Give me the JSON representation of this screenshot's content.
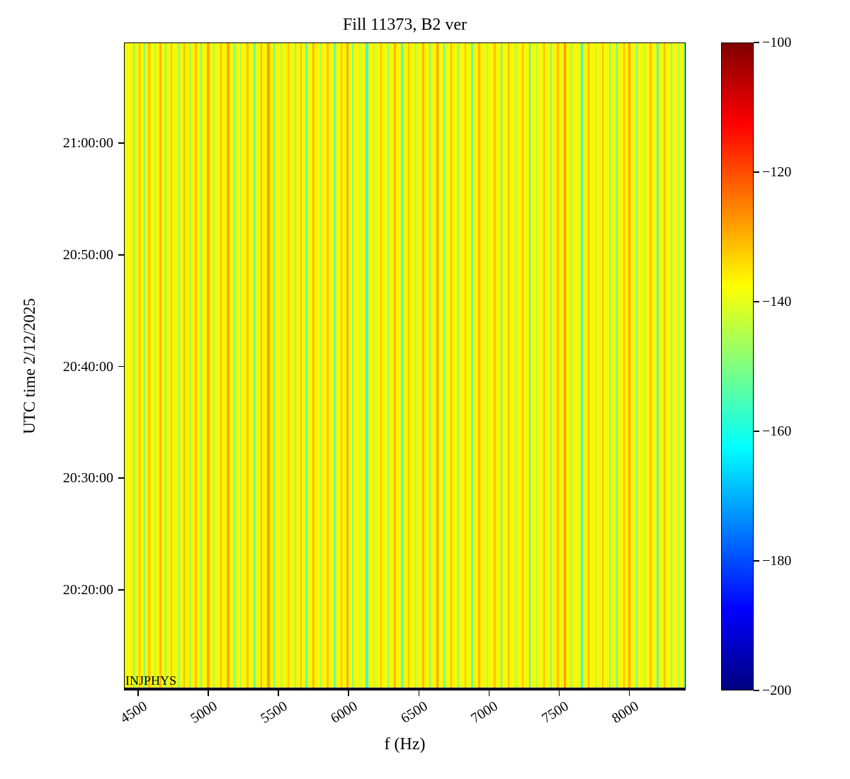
{
  "figure": {
    "title": "Fill 11373, B2 ver",
    "xlabel": "f (Hz)",
    "ylabel": "UTC time 2/12/2025",
    "annotation": "INJPHYS"
  },
  "chart_data": {
    "type": "heatmap",
    "title": "Fill 11373, B2 ver",
    "xlabel": "f (Hz)",
    "ylabel": "UTC time 2/12/2025",
    "colormap": "jet",
    "color_scale_db": [
      -200,
      -100
    ],
    "colorbar_ticks": [
      -100,
      -120,
      -140,
      -160,
      -180,
      -200
    ],
    "colorbar_tick_labels": [
      "−100",
      "−120",
      "−140",
      "−160",
      "−180",
      "−200"
    ],
    "x_range_hz": [
      4400,
      8400
    ],
    "x_ticks": [
      4500,
      5000,
      5500,
      6000,
      6500,
      7000,
      7500,
      8000
    ],
    "x_tick_labels": [
      "4500",
      "5000",
      "5500",
      "6000",
      "6500",
      "7000",
      "7500",
      "8000"
    ],
    "y_time_start": "20:11:00",
    "y_time_end": "21:09:00",
    "y_ticks": [
      "20:20:00",
      "20:30:00",
      "20:40:00",
      "20:50:00",
      "21:00:00"
    ],
    "time_invariant": true,
    "baseline_db": -137.5,
    "background_texture": {
      "amplitude_db": 2.0,
      "phase_per_hz": 0.9
    },
    "bottom_edge_db": -200,
    "stripe_format": [
      "f_hz",
      "db",
      "width_hz"
    ],
    "stripes": [
      [
        4470,
        -152,
        10
      ],
      [
        4510,
        -131,
        10
      ],
      [
        4545,
        -150,
        12
      ],
      [
        4580,
        -131,
        14
      ],
      [
        4620,
        -146,
        10
      ],
      [
        4660,
        -130,
        12
      ],
      [
        4700,
        -152,
        10
      ],
      [
        4740,
        -131,
        10
      ],
      [
        4790,
        -148,
        14
      ],
      [
        4830,
        -130,
        12
      ],
      [
        4870,
        -150,
        10
      ],
      [
        4910,
        -131,
        16
      ],
      [
        4950,
        -153,
        12
      ],
      [
        5000,
        -129,
        16
      ],
      [
        5040,
        -148,
        10
      ],
      [
        5090,
        -131,
        12
      ],
      [
        5140,
        -129,
        20
      ],
      [
        5185,
        -152,
        10
      ],
      [
        5230,
        -146,
        10
      ],
      [
        5280,
        -131,
        12
      ],
      [
        5330,
        -154,
        12
      ],
      [
        5380,
        -130,
        12
      ],
      [
        5430,
        -128,
        18
      ],
      [
        5470,
        -153,
        10
      ],
      [
        5520,
        -146,
        10
      ],
      [
        5570,
        -131,
        12
      ],
      [
        5620,
        -150,
        10
      ],
      [
        5660,
        -131,
        10
      ],
      [
        5700,
        -154,
        14
      ],
      [
        5750,
        -130,
        12
      ],
      [
        5800,
        -147,
        10
      ],
      [
        5850,
        -131,
        12
      ],
      [
        5900,
        -155,
        12
      ],
      [
        5950,
        -131,
        10
      ],
      [
        5990,
        -129,
        14
      ],
      [
        6030,
        -152,
        12
      ],
      [
        6080,
        -146,
        10
      ],
      [
        6130,
        -157,
        16
      ],
      [
        6180,
        -145,
        10
      ],
      [
        6230,
        -131,
        12
      ],
      [
        6280,
        -150,
        10
      ],
      [
        6330,
        -130,
        12
      ],
      [
        6380,
        -154,
        12
      ],
      [
        6430,
        -131,
        10
      ],
      [
        6480,
        -148,
        10
      ],
      [
        6530,
        -130,
        14
      ],
      [
        6580,
        -152,
        10
      ],
      [
        6630,
        -128,
        16
      ],
      [
        6680,
        -155,
        12
      ],
      [
        6730,
        -130,
        12
      ],
      [
        6780,
        -148,
        10
      ],
      [
        6830,
        -131,
        10
      ],
      [
        6880,
        -153,
        12
      ],
      [
        6930,
        -130,
        14
      ],
      [
        6990,
        -146,
        10
      ],
      [
        7040,
        -131,
        12
      ],
      [
        7090,
        -155,
        12
      ],
      [
        7140,
        -130,
        12
      ],
      [
        7190,
        -148,
        10
      ],
      [
        7240,
        -131,
        10
      ],
      [
        7290,
        -157,
        14
      ],
      [
        7340,
        -146,
        10
      ],
      [
        7390,
        -130,
        12
      ],
      [
        7440,
        -152,
        10
      ],
      [
        7490,
        -131,
        12
      ],
      [
        7540,
        -127,
        18
      ],
      [
        7590,
        -150,
        10
      ],
      [
        7660,
        -158,
        16
      ],
      [
        7710,
        -130,
        12
      ],
      [
        7760,
        -146,
        10
      ],
      [
        7810,
        -131,
        12
      ],
      [
        7860,
        -152,
        10
      ],
      [
        7910,
        -155,
        12
      ],
      [
        7960,
        -131,
        12
      ],
      [
        8000,
        -129,
        14
      ],
      [
        8050,
        -152,
        10
      ],
      [
        8100,
        -146,
        10
      ],
      [
        8150,
        -131,
        12
      ],
      [
        8200,
        -154,
        12
      ],
      [
        8250,
        -130,
        12
      ],
      [
        8300,
        -150,
        10
      ],
      [
        8350,
        -146,
        12
      ],
      [
        8390,
        -152,
        10
      ]
    ]
  }
}
